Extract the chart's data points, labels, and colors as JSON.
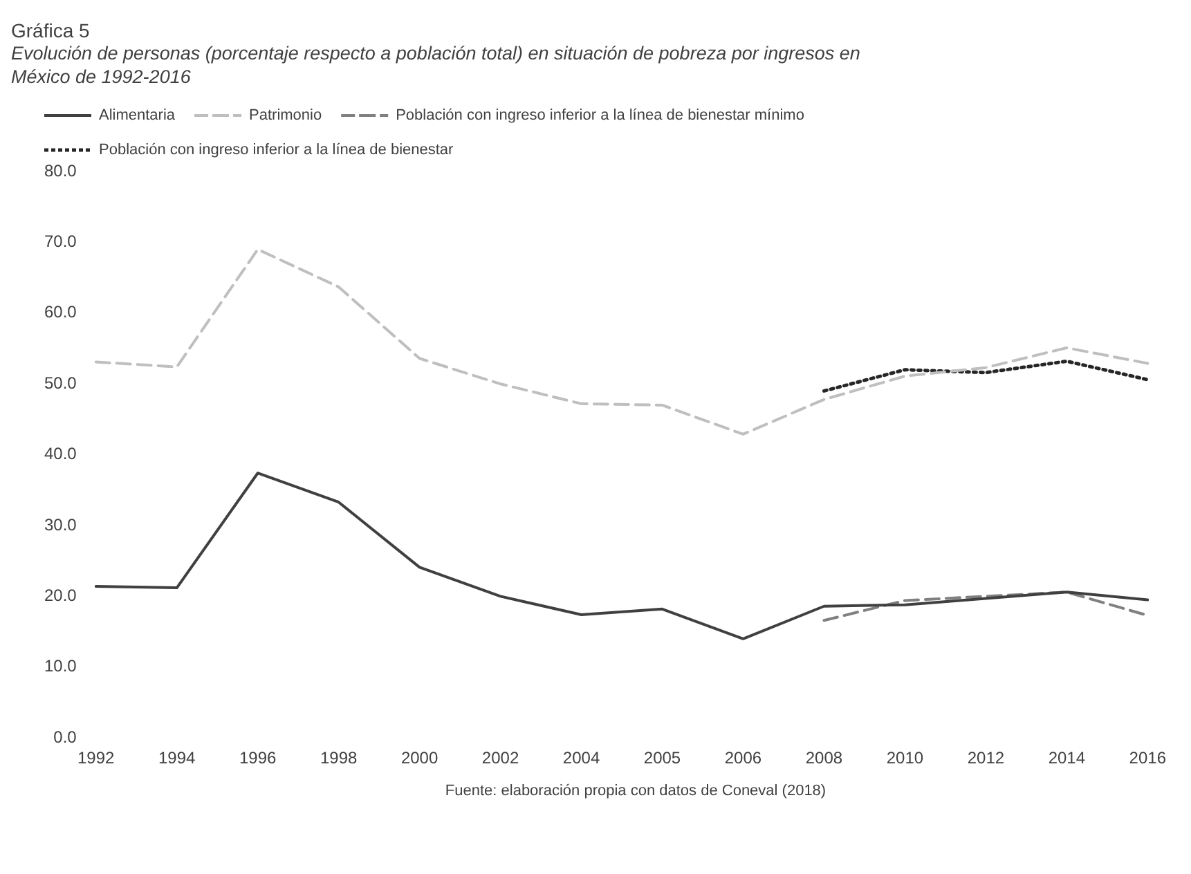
{
  "chart_data": {
    "type": "line",
    "title": "Gráfica 5",
    "subtitle": "Evolución de personas (porcentaje respecto a población total) en situación de pobreza por ingresos en México de 1992-2016",
    "categories": [
      "1992",
      "1994",
      "1996",
      "1998",
      "2000",
      "2002",
      "2004",
      "2005",
      "2006",
      "2008",
      "2010",
      "2012",
      "2014",
      "2016"
    ],
    "series": [
      {
        "name": "Alimentaria",
        "color": "#404040",
        "line_style": "solid",
        "values": [
          21.4,
          21.2,
          37.4,
          33.3,
          24.1,
          20.0,
          17.4,
          18.2,
          14.0,
          18.6,
          18.8,
          19.7,
          20.6,
          19.5
        ]
      },
      {
        "name": "Patrimonio",
        "color": "#bfbfbf",
        "line_style": "dashed",
        "values": [
          53.1,
          52.4,
          69.0,
          63.7,
          53.6,
          50.0,
          47.2,
          47.0,
          42.9,
          47.8,
          51.1,
          52.3,
          55.1,
          52.9
        ]
      },
      {
        "name": "Población con ingreso inferior a la línea de bienestar mínimo",
        "color": "#808080",
        "line_style": "dashed",
        "values": [
          null,
          null,
          null,
          null,
          null,
          null,
          null,
          null,
          null,
          16.6,
          19.4,
          20.0,
          20.6,
          17.3
        ]
      },
      {
        "name": "Población con ingreso inferior a la línea de bienestar",
        "color": "#262626",
        "line_style": "dotted",
        "values": [
          null,
          null,
          null,
          null,
          null,
          null,
          null,
          null,
          null,
          49.0,
          52.0,
          51.6,
          53.2,
          50.6
        ]
      }
    ],
    "ylim": [
      0,
      80
    ],
    "yticks": [
      {
        "value": 0,
        "label": "0.0"
      },
      {
        "value": 10,
        "label": "10.0"
      },
      {
        "value": 20,
        "label": "20.0"
      },
      {
        "value": 30,
        "label": "30.0"
      },
      {
        "value": 40,
        "label": "40.0"
      },
      {
        "value": 50,
        "label": "50.0"
      },
      {
        "value": 60,
        "label": "60.0"
      },
      {
        "value": 70,
        "label": "70.0"
      },
      {
        "value": 80,
        "label": "80.0"
      }
    ],
    "grid": false,
    "legend": "top",
    "marker": "none",
    "annotations": [
      "Fuente: elaboración propia con datos de Coneval (2018)"
    ]
  }
}
